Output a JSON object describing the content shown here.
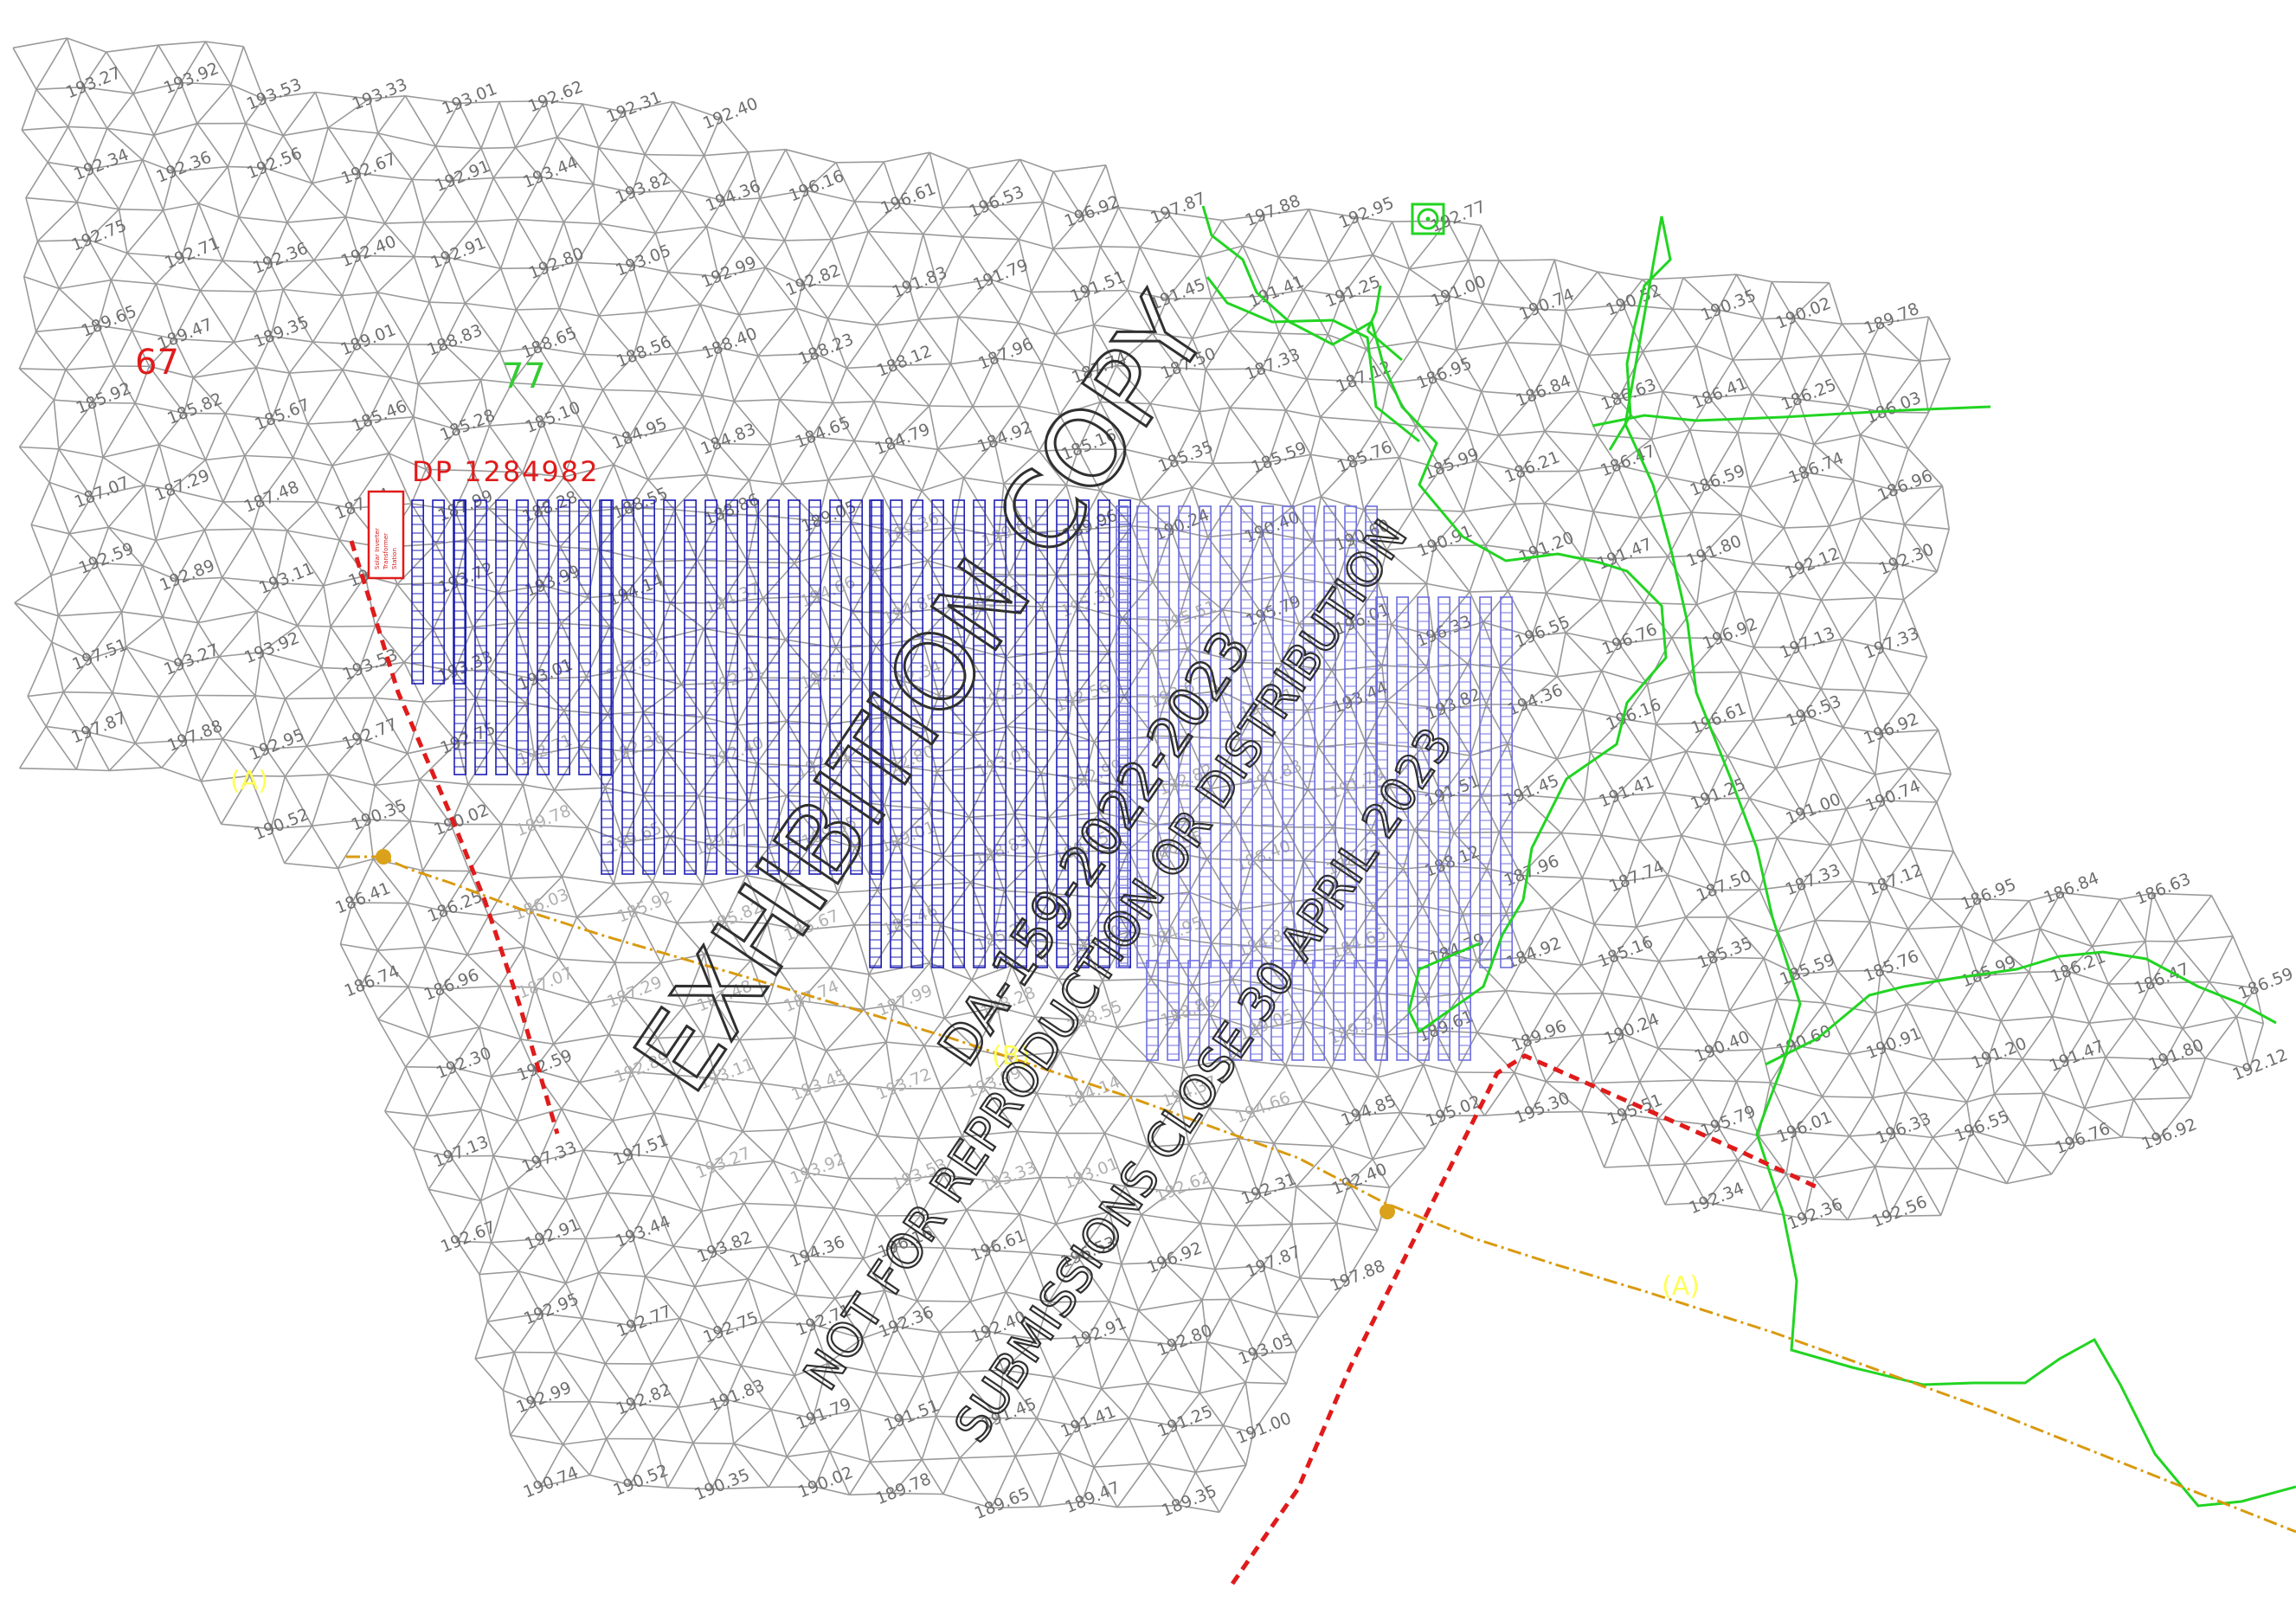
{
  "colors": {
    "mesh": "#9a9a9a",
    "spot_label": "#6e6e6e",
    "array_dark": "#1f1fb4",
    "array_light": "#6f6fe0",
    "creek": "#22d422",
    "transmission": "#d99a0f",
    "boundary": "#e01b1b",
    "lot_number": "#e01b1b",
    "lot_number_green": "#33cc33",
    "marker": "#ffff55",
    "stamp": "#303030"
  },
  "lots": [
    {
      "label": "67",
      "color": "#e01b1b"
    },
    {
      "label": "77",
      "color": "#33cc33"
    }
  ],
  "deposited_plan": {
    "label": "DP 1284982"
  },
  "line_markers": [
    {
      "label": "(A)"
    },
    {
      "label": "(B)"
    },
    {
      "label": "(A)"
    }
  ],
  "spot_levels": [
    "193.27",
    "193.92",
    "193.53",
    "193.33",
    "193.01",
    "192.62",
    "192.31",
    "192.40",
    "192.34",
    "192.36",
    "192.56",
    "192.67",
    "192.91",
    "193.44",
    "193.82",
    "194.36",
    "196.16",
    "196.61",
    "196.53",
    "196.92",
    "197.87",
    "197.88",
    "192.95",
    "192.77",
    "192.75",
    "192.71",
    "192.36",
    "192.40",
    "192.91",
    "192.80",
    "193.05",
    "192.99",
    "192.82",
    "191.83",
    "191.79",
    "191.51",
    "191.45",
    "191.41",
    "191.25",
    "191.00",
    "190.74",
    "190.52",
    "190.35",
    "190.02",
    "189.78",
    "189.65",
    "189.47",
    "189.35",
    "189.01",
    "188.83",
    "188.65",
    "188.56",
    "188.40",
    "188.23",
    "188.12",
    "187.96",
    "187.74",
    "187.50",
    "187.33",
    "187.12",
    "186.95",
    "186.84",
    "186.63",
    "186.41",
    "186.25",
    "186.03",
    "185.92",
    "185.82",
    "185.67",
    "185.46",
    "185.28",
    "185.10",
    "184.95",
    "184.83",
    "184.65",
    "184.79",
    "184.92",
    "185.16",
    "185.35",
    "185.59",
    "185.76",
    "185.99",
    "186.21",
    "186.47",
    "186.59",
    "186.74",
    "186.96",
    "187.07",
    "187.29",
    "187.48",
    "187.74",
    "187.99",
    "188.28",
    "188.55",
    "188.86",
    "189.05",
    "189.36",
    "189.61",
    "189.96",
    "190.24",
    "190.40",
    "190.60",
    "190.91",
    "191.20",
    "191.47",
    "191.80",
    "192.12",
    "192.30",
    "192.59",
    "192.89",
    "193.11",
    "193.45",
    "193.72",
    "193.99",
    "194.14",
    "194.37",
    "194.66",
    "194.85",
    "195.02",
    "195.30",
    "195.51",
    "195.79",
    "196.01",
    "196.33",
    "196.55",
    "196.76",
    "196.92",
    "197.13",
    "197.33",
    "197.51"
  ],
  "stamp": {
    "line1": "EXHIBITION COPY",
    "line2": "DA-159-2022-2023",
    "line3": "NOT FOR REPRODUCTION OR DISTRIBUTION",
    "line4": "SUBMISSIONS CLOSE 30 APRIL 2023"
  },
  "easement_note": [
    "Solar Inverter",
    "Transformer",
    "Station"
  ]
}
